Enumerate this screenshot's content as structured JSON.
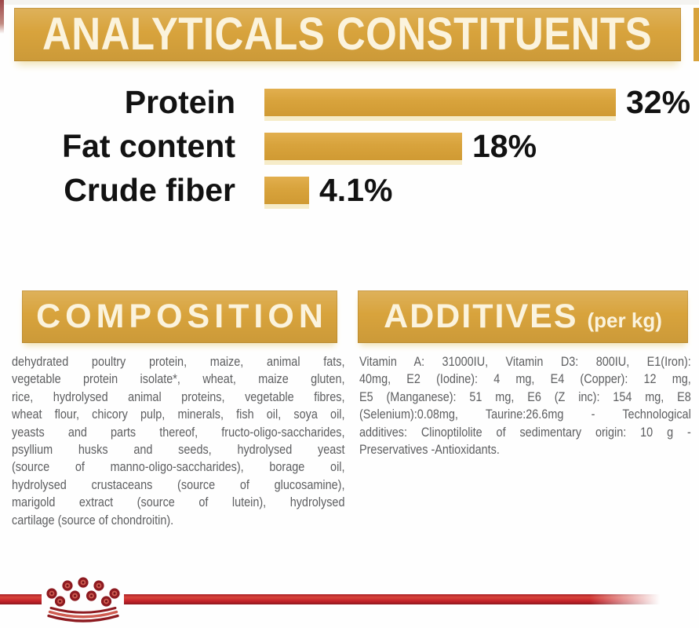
{
  "banner": {
    "title": "ANALYTICALS CONSTITUENTS"
  },
  "chart_data": {
    "type": "bar",
    "orientation": "horizontal",
    "title": "ANALYTICALS CONSTITUENTS",
    "categories": [
      "Protein",
      "Fat content",
      "Crude fiber"
    ],
    "values": [
      32,
      18,
      4.1
    ],
    "value_labels": [
      "32%",
      "18%",
      "4.1%"
    ],
    "unit": "%",
    "xlim": [
      0,
      34
    ],
    "grid": false,
    "legend": false,
    "bar_color": "#d8a33c",
    "label_color": "#121212"
  },
  "composition": {
    "title": "COMPOSITION",
    "lines": [
      "dehydrated poultry protein, maize, animal fats,",
      "vegetable protein isolate*, wheat, maize gluten,",
      "rice, hydrolysed animal proteins, vegetable fibres,",
      "wheat flour, chicory pulp, minerals, fish oil, soya oil,",
      "yeasts and parts thereof, fructo-oligo-saccharides,",
      "psyllium husks and seeds, hydrolysed yeast",
      "(source of manno-oligo-saccharides), borage oil,",
      "hydrolysed crustaceans (source of glucosamine),",
      "marigold extract (source of lutein), hydrolysed",
      "cartilage (source of chondroitin)."
    ]
  },
  "additives": {
    "title": "ADDITIVES",
    "suffix": "(per kg)",
    "lines": [
      "Vitamin A: 31000IU, Vitamin D3: 800IU, E1(Iron):",
      "40mg, E2 (Iodine): 4 mg, E4 (Copper): 12 mg,",
      "E5 (Manganese): 51 mg, E6 (Z inc): 154 mg, E8",
      "(Selenium):0.08mg, Taurine:26.6mg - Technological",
      "additives: Clinoptilolite of sedimentary origin: 10 g -",
      "Preservatives -Antioxidants."
    ]
  },
  "footer": {
    "logo": "royal-canin-crown",
    "stripe_color": "#c32229",
    "crown_color": "#8d1a20",
    "crown_accent": "#cf5b50"
  },
  "colors": {
    "gold": "#d8a33c",
    "header_text": "#fbf3dd",
    "body_text": "#5d5e60",
    "red": "#c32229"
  }
}
